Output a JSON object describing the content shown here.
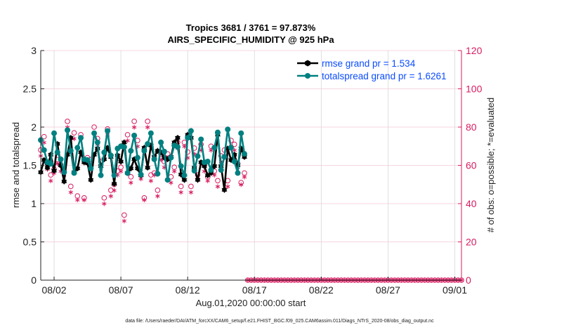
{
  "chart_data": {
    "type": "line",
    "title": [
      "Tropics 3681 / 3761 = 97.873%",
      "AIRS_SPECIFIC_HUMIDITY @ 925 hPa"
    ],
    "xlabel": "Aug.01,2020 00:00:00 start",
    "ylabel": "rmse and totalspread",
    "ylabel_right": "# of obs: o=possible; *=evaluated",
    "footer": "data file: /Users/raeder/DAI/ATM_forcXX/CAM6_setup/f.e21.FHIST_BGC.f09_025.CAM6assim.011/Diags_NTrS_2020-08/obs_diag_output.nc",
    "x_start": "2020-08-01 00:00",
    "x_step_hours": 6,
    "xlim": [
      "2020-08-01 00:00",
      "2020-09-01 12:00"
    ],
    "x_ticks": [
      "08/02",
      "08/07",
      "08/12",
      "08/17",
      "08/22",
      "08/27",
      "09/01"
    ],
    "ylim": [
      0,
      3
    ],
    "y_ticks": [
      "0",
      "0.5",
      "1",
      "1.5",
      "2",
      "2.5",
      "3"
    ],
    "ylim_right": [
      0,
      120
    ],
    "y_ticks_right": [
      "0",
      "20",
      "40",
      "60",
      "80",
      "100",
      "120"
    ],
    "grid": true,
    "legend_placement": "top-right",
    "colors": {
      "rmse": "#000000",
      "totalspread": "#008080",
      "obs": "#d81b60",
      "legend_text": "#0a4cff",
      "grid_h": "#f0c8d4",
      "grid_v": "#d8d8d8"
    },
    "series": [
      {
        "name": "rmse grand pr = 1.534",
        "axis": "left",
        "values": [
          1.41,
          1.57,
          1.47,
          1.64,
          1.43,
          1.78,
          1.5,
          1.29,
          1.64,
          1.86,
          1.41,
          1.46,
          1.67,
          1.54,
          1.53,
          1.31,
          1.64,
          1.72,
          1.49,
          1.58,
          1.73,
          1.61,
          1.26,
          1.63,
          1.55,
          1.8,
          1.4,
          1.46,
          1.58,
          1.46,
          1.37,
          1.73,
          1.47,
          1.76,
          1.61,
          1.69,
          1.67,
          1.6,
          1.58,
          1.61,
          1.8,
          1.86,
          1.38,
          1.31,
          1.9,
          1.86,
          1.47,
          1.31,
          1.54,
          1.49,
          1.37,
          1.4,
          1.49,
          1.9,
          1.49,
          1.18,
          1.72,
          1.57,
          1.64,
          1.5,
          1.72,
          1.61
        ]
      },
      {
        "name": "totalspread grand pr = 1.6261",
        "axis": "left",
        "values": [
          1.83,
          1.7,
          1.54,
          1.52,
          1.92,
          1.67,
          1.58,
          1.41,
          1.96,
          1.69,
          1.4,
          1.73,
          1.86,
          1.58,
          1.57,
          1.46,
          1.92,
          1.8,
          1.37,
          1.67,
          1.95,
          1.63,
          1.37,
          1.72,
          1.75,
          1.74,
          1.4,
          1.69,
          1.89,
          1.6,
          1.38,
          1.69,
          1.78,
          1.92,
          1.58,
          1.39,
          1.8,
          1.68,
          1.31,
          1.6,
          1.76,
          1.74,
          1.49,
          1.37,
          1.86,
          1.95,
          1.43,
          1.62,
          1.84,
          1.54,
          1.55,
          1.44,
          1.73,
          1.93,
          1.44,
          1.61,
          1.97,
          1.73,
          1.55,
          1.4,
          1.92,
          1.65
        ]
      },
      {
        "name": "possible",
        "axis": "right",
        "marker": "o",
        "values": [
          68,
          75,
          61,
          55,
          58,
          63,
          60,
          57,
          83,
          49,
          77,
          44,
          76,
          43,
          64,
          63,
          80,
          74,
          62,
          43,
          79,
          47,
          50,
          57,
          59,
          34,
          76,
          54,
          83,
          73,
          55,
          43,
          83,
          55,
          56,
          47,
          66,
          62,
          66,
          54,
          59,
          72,
          49,
          72,
          67,
          49,
          69,
          55,
          71,
          60,
          54,
          70,
          57,
          52,
          65,
          68,
          52,
          73,
          71,
          61,
          51,
          56,
          0,
          0,
          0,
          0,
          0,
          0,
          0,
          0,
          0,
          0,
          0,
          0,
          0,
          0,
          0,
          0,
          0,
          0,
          0,
          0,
          0,
          0,
          0,
          0,
          0,
          0,
          0,
          0,
          0,
          0,
          0,
          0,
          0,
          0,
          0,
          0,
          0,
          0,
          0,
          0,
          0,
          0,
          0,
          0,
          0,
          0,
          0,
          0,
          0,
          0,
          0,
          0,
          0,
          0,
          0,
          0,
          0,
          0,
          0,
          0,
          0,
          0,
          0,
          0,
          0
        ]
      },
      {
        "name": "evaluated",
        "axis": "right",
        "marker": "*",
        "values": [
          66,
          73,
          59,
          53,
          57,
          62,
          58,
          56,
          81,
          47,
          75,
          43,
          75,
          43,
          62,
          62,
          78,
          72,
          61,
          41,
          77,
          45,
          48,
          56,
          58,
          32,
          74,
          52,
          81,
          71,
          54,
          43,
          81,
          53,
          56,
          45,
          64,
          60,
          65,
          52,
          58,
          70,
          47,
          71,
          65,
          47,
          67,
          54,
          69,
          58,
          53,
          69,
          56,
          50,
          63,
          66,
          50,
          71,
          69,
          60,
          51,
          55,
          0,
          0,
          0,
          0,
          0,
          0,
          0,
          0,
          0,
          0,
          0,
          0,
          0,
          0,
          0,
          0,
          0,
          0,
          0,
          0,
          0,
          0,
          0,
          0,
          0,
          0,
          0,
          0,
          0,
          0,
          0,
          0,
          0,
          0,
          0,
          0,
          0,
          0,
          0,
          0,
          0,
          0,
          0,
          0,
          0,
          0,
          0,
          0,
          0,
          0,
          0,
          0,
          0,
          0,
          0,
          0,
          0,
          0,
          0,
          0,
          0,
          0,
          0,
          0,
          0
        ]
      }
    ]
  }
}
